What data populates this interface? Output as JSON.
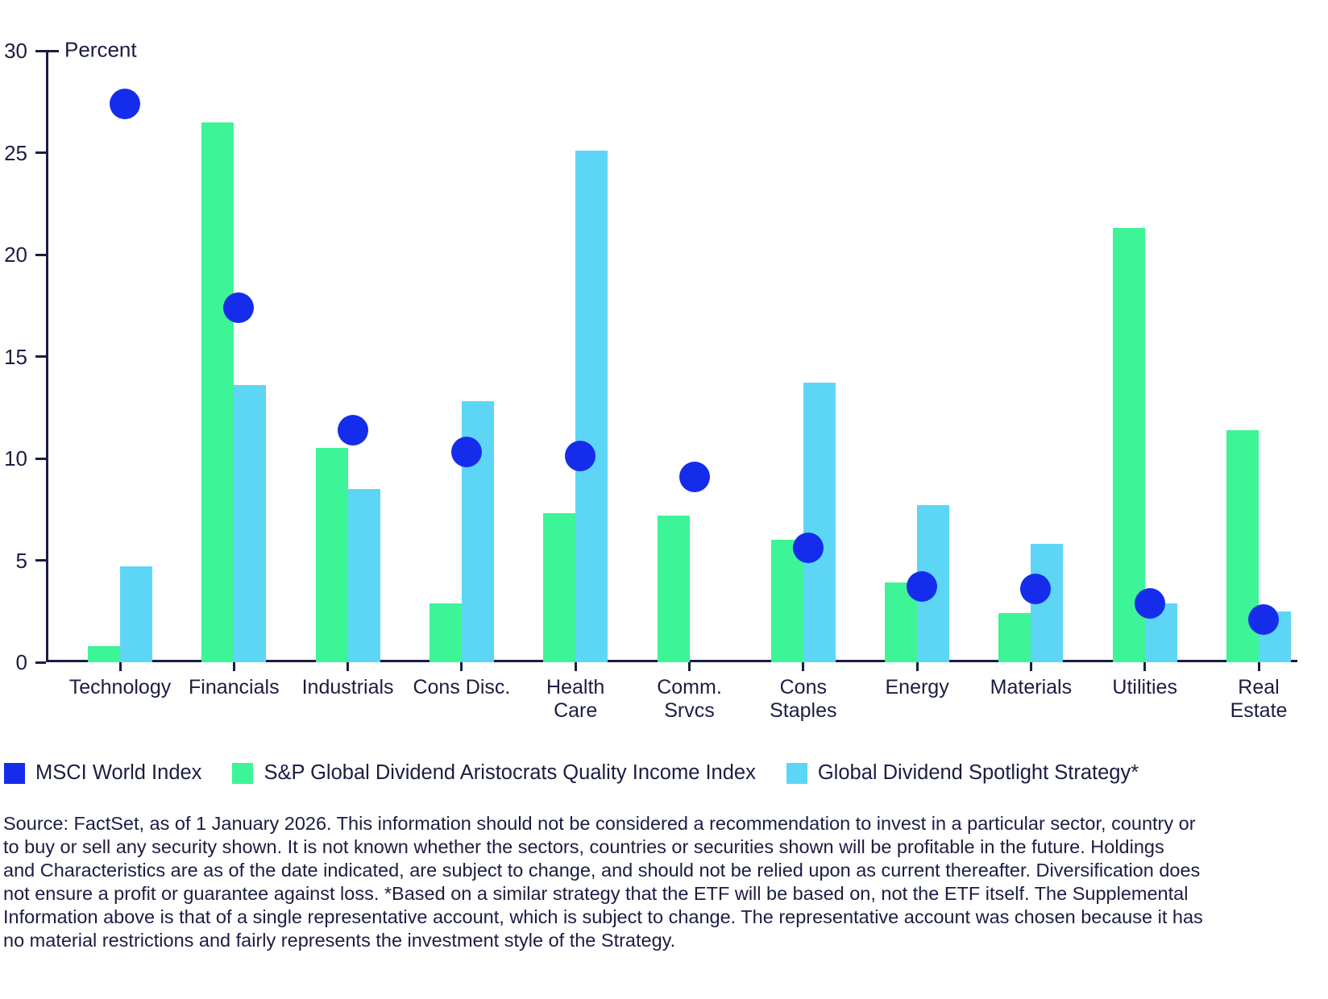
{
  "chart_data": {
    "type": "bar",
    "title": "",
    "ylabel": "Percent",
    "xlabel": "",
    "ylim": [
      0,
      30
    ],
    "y_ticks": [
      0,
      5,
      10,
      15,
      20,
      25,
      30
    ],
    "grid": false,
    "legend_position": "bottom",
    "categories": [
      "Technology",
      "Financials",
      "Industrials",
      "Cons Disc.",
      "Health Care",
      "Comm. Srvcs",
      "Cons Staples",
      "Energy",
      "Materials",
      "Utilities",
      "Real Estate"
    ],
    "category_label_lines": [
      [
        "Technology"
      ],
      [
        "Financials"
      ],
      [
        "Industrials"
      ],
      [
        "Cons Disc."
      ],
      [
        "Health",
        "Care"
      ],
      [
        "Comm.",
        "Srvcs"
      ],
      [
        "Cons",
        "Staples"
      ],
      [
        "Energy"
      ],
      [
        "Materials"
      ],
      [
        "Utilities"
      ],
      [
        "Real",
        "Estate"
      ]
    ],
    "series": [
      {
        "name": "MSCI World Index",
        "type": "scatter",
        "color": "#152DEB",
        "values": [
          27.4,
          17.4,
          11.4,
          10.3,
          10.1,
          9.1,
          5.6,
          3.7,
          3.6,
          2.9,
          2.1
        ]
      },
      {
        "name": "S&P Global Dividend Aristocrats Quality Income Index",
        "type": "bar",
        "color": "#3DF496",
        "values": [
          0.8,
          26.5,
          10.5,
          2.9,
          7.3,
          7.2,
          6.0,
          3.9,
          2.4,
          21.3,
          11.4
        ]
      },
      {
        "name": "Global Dividend Spotlight Strategy*",
        "type": "bar",
        "color": "#5DD6F6",
        "values": [
          4.7,
          13.6,
          8.5,
          12.8,
          25.1,
          0,
          13.7,
          7.7,
          5.8,
          2.9,
          2.5
        ]
      }
    ],
    "axis_color": "#1a1e42"
  },
  "footnote": "Source: FactSet, as of 1 January 2026. This information should not be considered a recommendation to invest in a particular sector, country or\nto buy or sell any security shown. It is not known whether the sectors, countries or securities shown will be profitable in the future. Holdings\nand Characteristics are as of the date indicated, are subject to change, and should not be relied upon as current thereafter. Diversification does\nnot ensure a profit or guarantee against loss. *Based on a similar strategy that the ETF will be based on, not the ETF itself. The Supplemental\nInformation above is that of a single representative account, which is subject to change. The representative account was chosen because it has\nno material restrictions and fairly represents the investment style of the Strategy."
}
